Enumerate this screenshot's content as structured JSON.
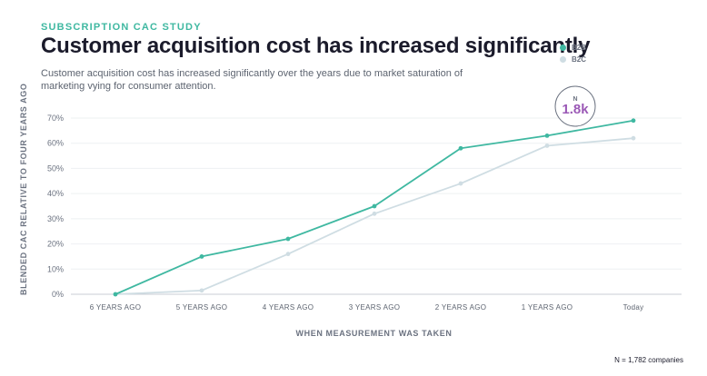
{
  "header": {
    "eyebrow": "SUBSCRIPTION CAC STUDY",
    "title": "Customer acquisition cost has increased significantly",
    "subtitle": "Customer acquisition cost has increased significantly over the years due to market saturation of marketing vying for consumer attention."
  },
  "footnote": "N = 1,782 companies",
  "annotation": {
    "label": "N",
    "value": "1.8k",
    "color": "#9b59b6"
  },
  "colors": {
    "b2b": "#3fb8a1",
    "b2c": "#cfdde3",
    "grid": "#eef0f2",
    "axis": "#c9ced6"
  },
  "chart_data": {
    "type": "line",
    "xlabel": "WHEN MEASUREMENT WAS TAKEN",
    "ylabel": "BLENDED CAC RELATIVE TO FOUR YEARS AGO",
    "categories": [
      "6 YEARS AGO",
      "5 YEARS AGO",
      "4 YEARS AGO",
      "3 YEARS AGO",
      "2 YEARS AGO",
      "1 YEARS AGO",
      "Today"
    ],
    "y_ticks": [
      "0%",
      "10%",
      "20%",
      "30%",
      "40%",
      "50%",
      "60%",
      "70%"
    ],
    "ylim": [
      0,
      70
    ],
    "grid": true,
    "legend_position": "top-right",
    "series": [
      {
        "name": "B2B",
        "color": "#3fb8a1",
        "values": [
          0,
          15,
          22,
          35,
          58,
          63,
          69
        ]
      },
      {
        "name": "B2C",
        "color": "#cfdde3",
        "values": [
          0,
          1.5,
          16,
          32,
          44,
          59,
          62
        ]
      }
    ]
  }
}
